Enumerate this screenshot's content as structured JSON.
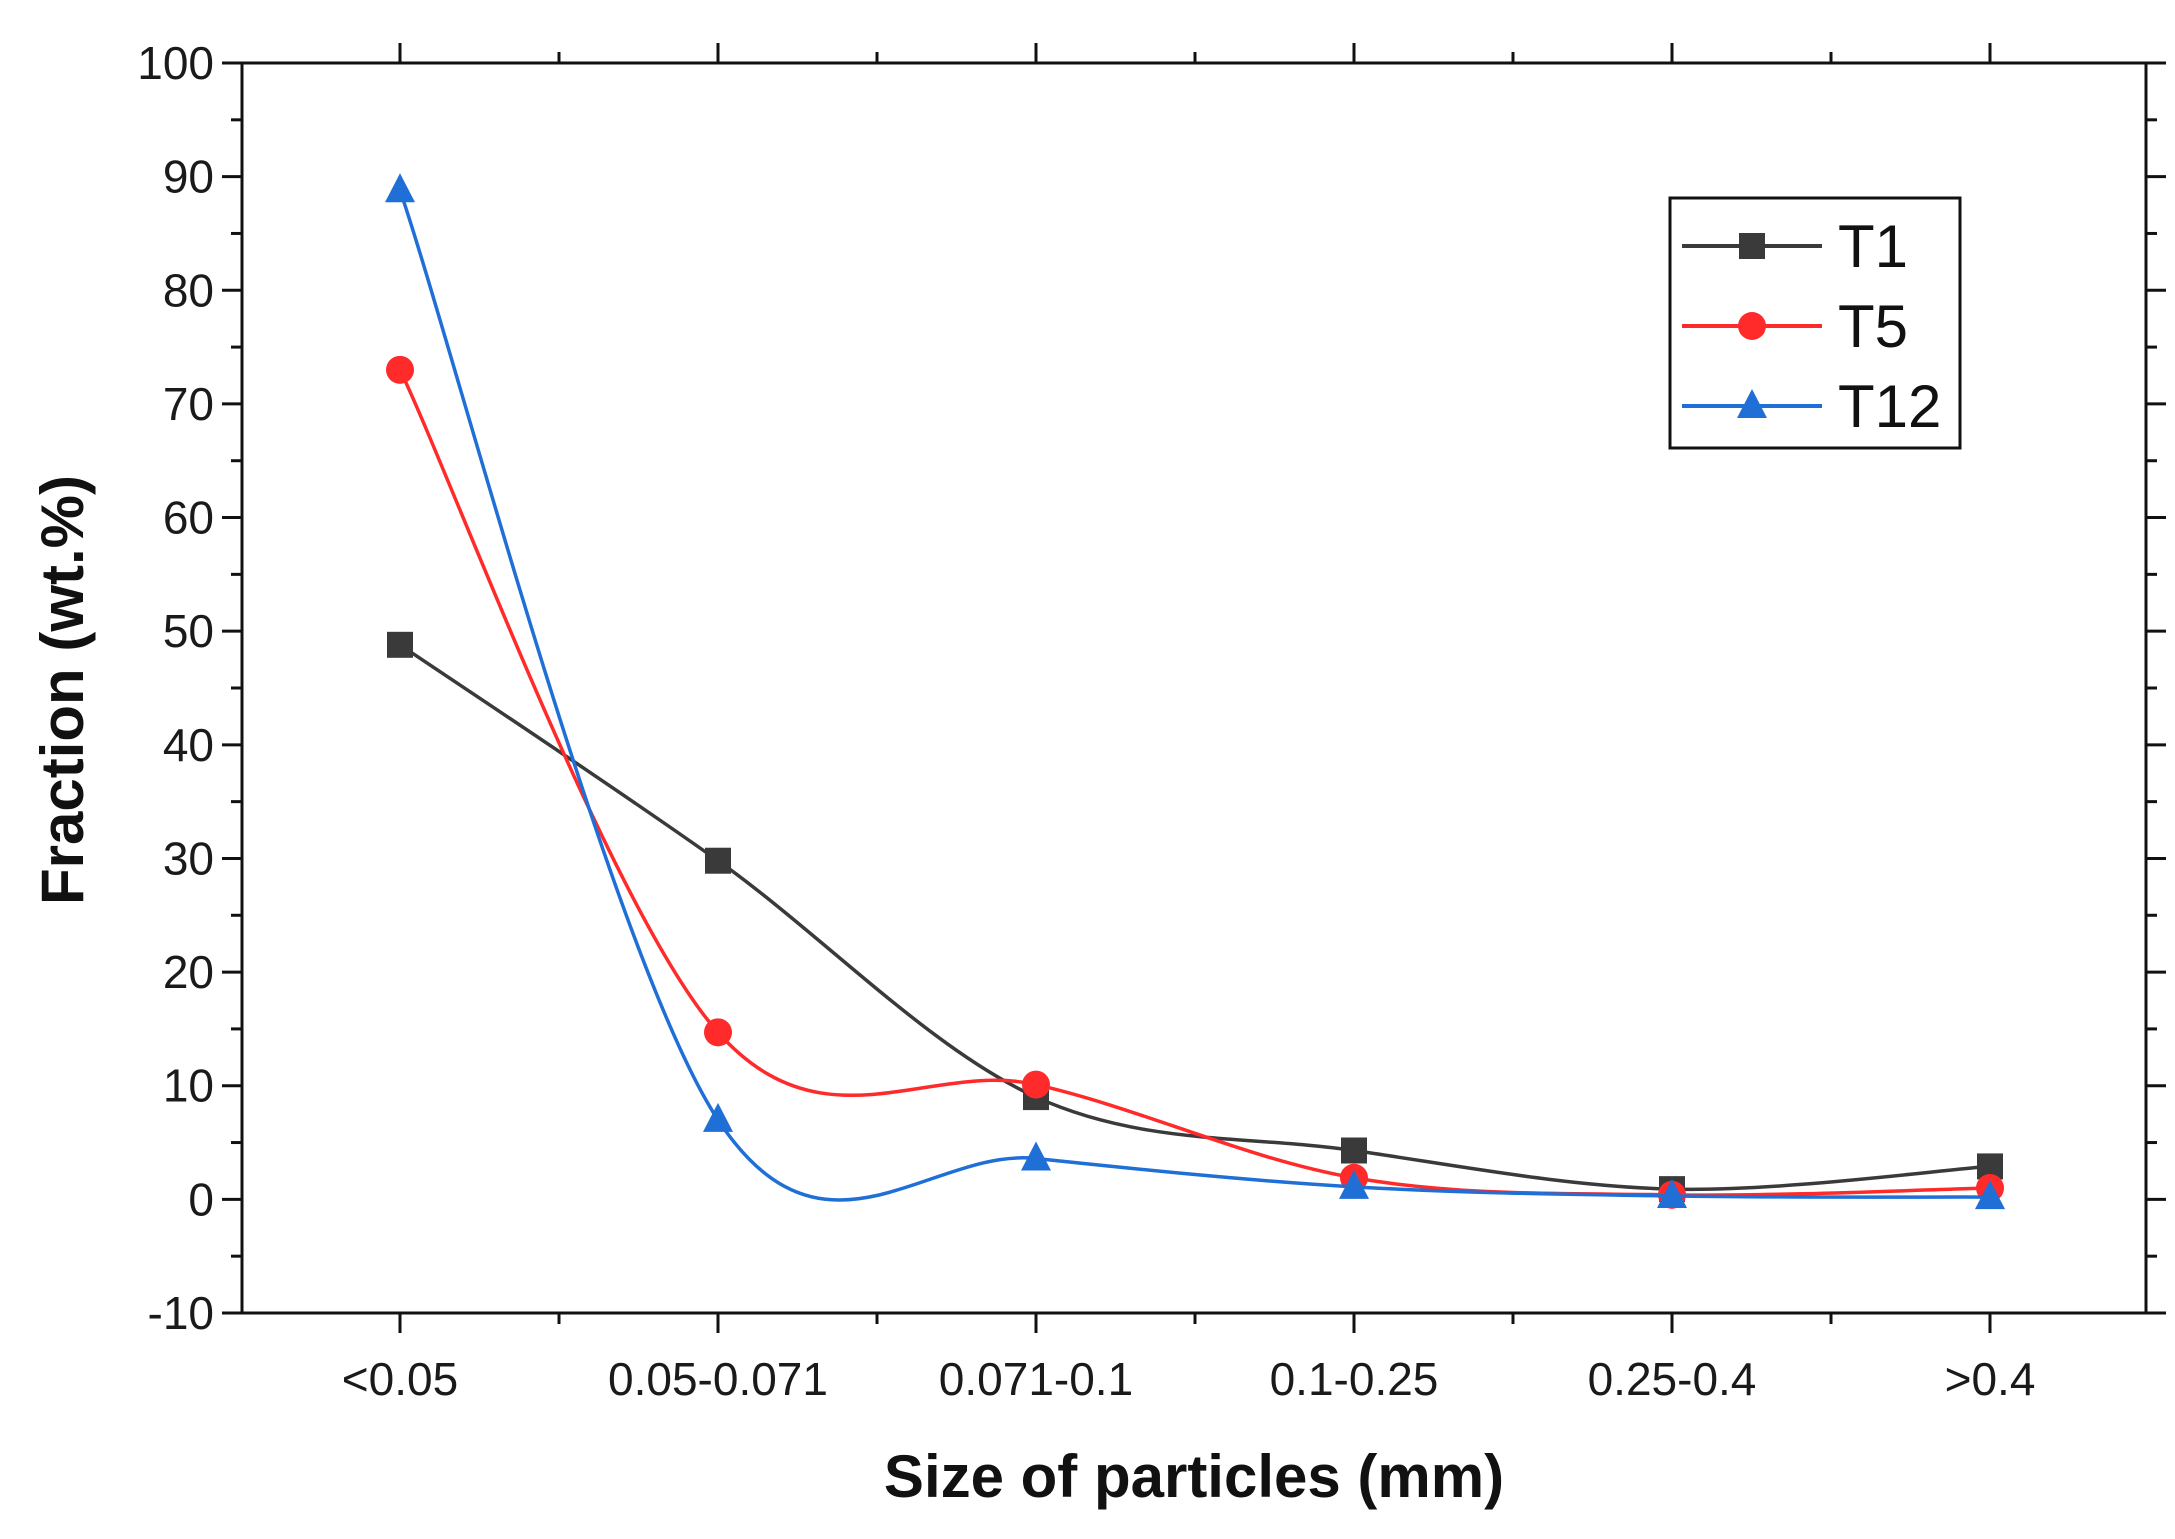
{
  "chart_data": {
    "type": "line",
    "title": "",
    "xlabel": "Size of particles (mm)",
    "ylabel": "Fraction (wt.%)",
    "categories": [
      "<0.05",
      "0.05-0.071",
      "0.071-0.1",
      "0.1-0.25",
      "0.25-0.4",
      ">0.4"
    ],
    "ylim": [
      -10,
      100
    ],
    "yticks": [
      -10,
      0,
      10,
      20,
      30,
      40,
      50,
      60,
      70,
      80,
      90,
      100
    ],
    "grid": false,
    "legend_position": "top-right",
    "series": [
      {
        "name": "T1",
        "color": "#3a3a3a",
        "marker": "square",
        "values": [
          48.8,
          29.8,
          9.0,
          4.3,
          0.9,
          2.9
        ]
      },
      {
        "name": "T5",
        "color": "#ff2a2a",
        "marker": "circle",
        "values": [
          73.0,
          14.7,
          10.1,
          1.9,
          0.4,
          1.0
        ]
      },
      {
        "name": "T12",
        "color": "#1f6fd6",
        "marker": "triangle",
        "values": [
          88.8,
          7.0,
          3.6,
          1.1,
          0.3,
          0.2
        ]
      }
    ]
  }
}
